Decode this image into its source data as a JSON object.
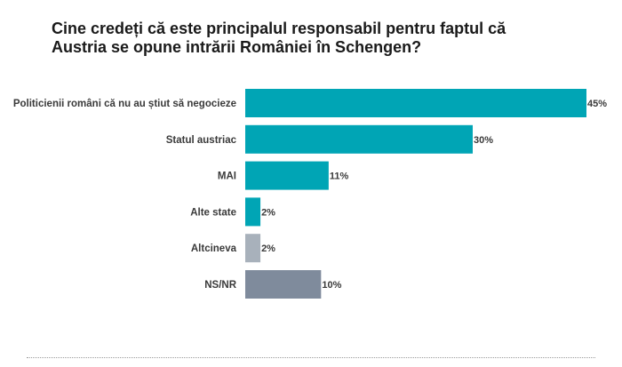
{
  "chart_data": {
    "type": "bar",
    "orientation": "horizontal",
    "title": "Cine credeți că este principalul responsabil pentru faptul că Austria se opune intrării României în Schengen?",
    "categories": [
      "Politicienii români că nu au știut să negocieze",
      "Statul austriac",
      "MAI",
      "Alte state",
      "Altcineva",
      "NS/NR"
    ],
    "values": [
      45,
      30,
      11,
      2,
      2,
      10
    ],
    "value_labels": [
      "45%",
      "30%",
      "11%",
      "2%",
      "2%",
      "10%"
    ],
    "bar_colors": [
      "#00a5b5",
      "#00a5b5",
      "#00a5b5",
      "#00a5b5",
      "#a8b1bb",
      "#7f8b9c"
    ],
    "xlim": [
      0,
      45
    ],
    "grid": false,
    "legend": "none"
  }
}
